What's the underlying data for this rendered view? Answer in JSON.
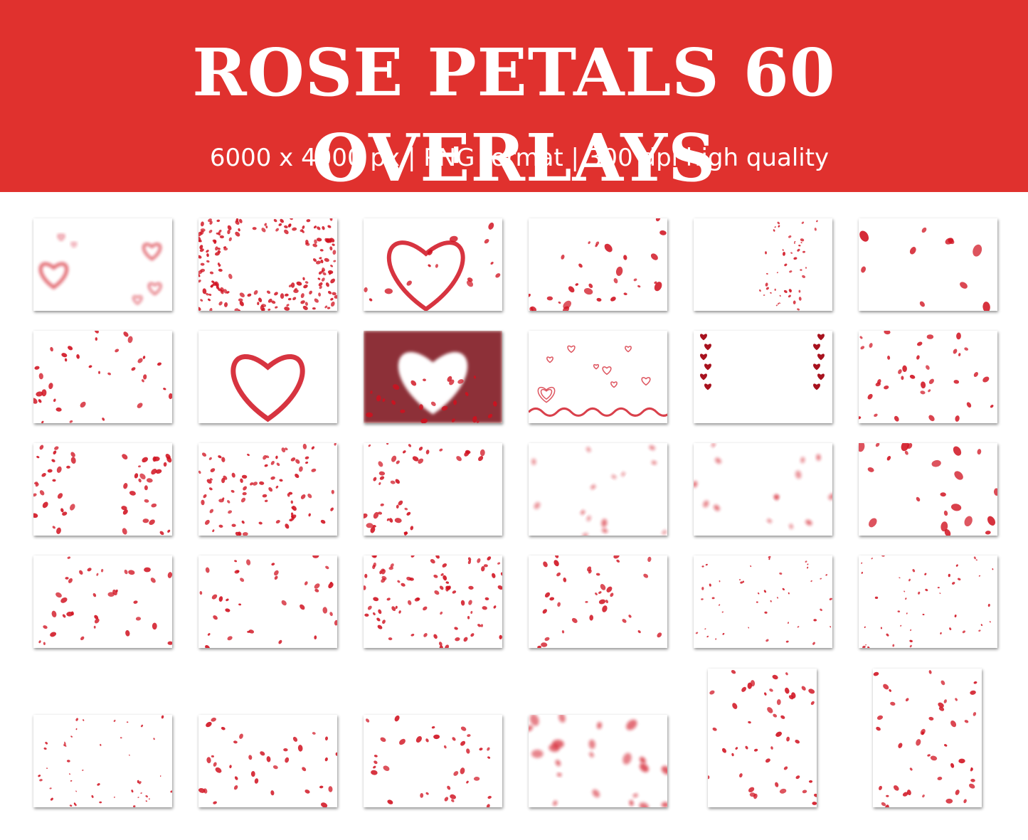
{
  "header": {
    "title": "ROSE PETALS 60 OVERLAYS",
    "subtitle": "6000 x 4000 px | PNG format | 300 dpi high quality"
  },
  "colors": {
    "banner": "#e0312e",
    "petal": "#d0101e",
    "text": "#ffffff"
  },
  "grid": {
    "rows": [
      [
        {
          "style": "outline-hearts"
        },
        {
          "style": "petal-heart-frame"
        },
        {
          "style": "ribbon-heart-petals"
        },
        {
          "style": "petals-corner"
        },
        {
          "style": "petals-stream"
        },
        {
          "style": "petals-sparse-large"
        }
      ],
      [
        {
          "style": "petals-scatter"
        },
        {
          "style": "ribbon-heart"
        },
        {
          "style": "blur-heart-frame"
        },
        {
          "style": "heart-balloons"
        },
        {
          "style": "hanging-hearts"
        },
        {
          "style": "petals-scatter"
        }
      ],
      [
        {
          "style": "petals-sides"
        },
        {
          "style": "petals-dense"
        },
        {
          "style": "petals-left"
        },
        {
          "style": "petals-blur"
        },
        {
          "style": "petals-blur"
        },
        {
          "style": "petals-large"
        }
      ],
      [
        {
          "style": "petals-scatter"
        },
        {
          "style": "petals-scatter"
        },
        {
          "style": "petals-dense"
        },
        {
          "style": "petals-scatter"
        },
        {
          "style": "petals-small"
        },
        {
          "style": "petals-small"
        }
      ],
      [
        {
          "style": "petals-small"
        },
        {
          "style": "petals-scatter"
        },
        {
          "style": "petals-scatter"
        },
        {
          "style": "petals-blur-large"
        },
        {
          "style": "petals-portrait"
        },
        {
          "style": "petals-portrait"
        }
      ]
    ]
  }
}
